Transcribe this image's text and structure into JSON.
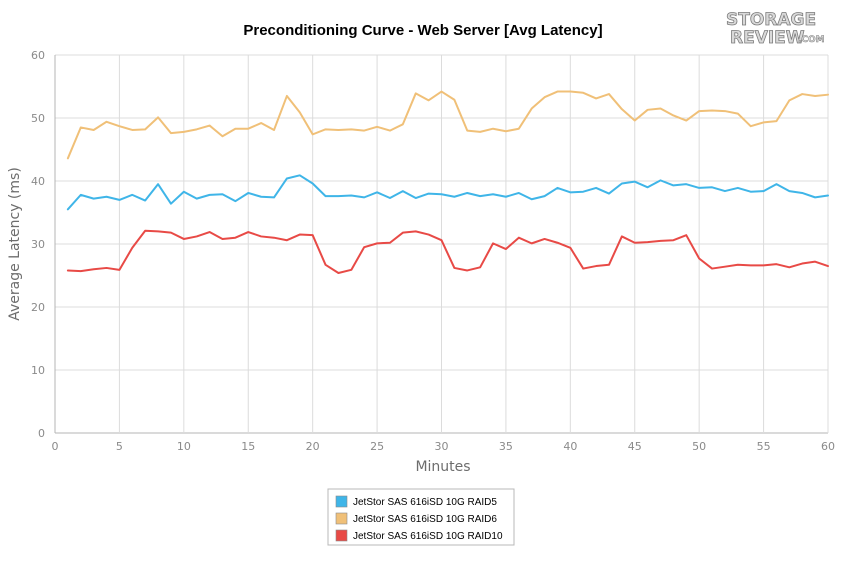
{
  "chart_data": {
    "type": "line",
    "title": "Preconditioning Curve - Web Server [Avg Latency]",
    "xlabel": "Minutes",
    "ylabel": "Average Latency (ms)",
    "xlim": [
      0,
      60
    ],
    "ylim": [
      0,
      60
    ],
    "xticks": [
      0,
      5,
      10,
      15,
      20,
      25,
      30,
      35,
      40,
      45,
      50,
      55,
      60
    ],
    "yticks": [
      0,
      10,
      20,
      30,
      40,
      50,
      60
    ],
    "grid": true,
    "legend_position": "bottom-center",
    "x": [
      1,
      2,
      3,
      4,
      5,
      6,
      7,
      8,
      9,
      10,
      11,
      12,
      13,
      14,
      15,
      16,
      17,
      18,
      19,
      20,
      21,
      22,
      23,
      24,
      25,
      26,
      27,
      28,
      29,
      30,
      31,
      32,
      33,
      34,
      35,
      36,
      37,
      38,
      39,
      40,
      41,
      42,
      43,
      44,
      45,
      46,
      47,
      48,
      49,
      50,
      51,
      52,
      53,
      54,
      55,
      56,
      57,
      58,
      59,
      60
    ],
    "series": [
      {
        "name": "JetStor SAS 616iSD 10G RAID5",
        "color": "#3fb5e8",
        "values": [
          35.5,
          37.8,
          37.2,
          37.5,
          37.0,
          37.8,
          36.9,
          39.5,
          36.4,
          38.3,
          37.2,
          37.8,
          37.9,
          36.8,
          38.1,
          37.5,
          37.4,
          40.4,
          40.9,
          39.6,
          37.6,
          37.6,
          37.7,
          37.4,
          38.2,
          37.3,
          38.4,
          37.3,
          38.0,
          37.9,
          37.5,
          38.1,
          37.6,
          37.9,
          37.5,
          38.1,
          37.1,
          37.6,
          38.9,
          38.2,
          38.3,
          38.9,
          38.0,
          39.6,
          39.9,
          39.0,
          40.1,
          39.3,
          39.5,
          38.9,
          39.0,
          38.4,
          38.9,
          38.3,
          38.4,
          39.5,
          38.4,
          38.1,
          37.4,
          37.7
        ]
      },
      {
        "name": "JetStor SAS 616iSD 10G RAID6",
        "color": "#f0c078",
        "values": [
          43.6,
          48.5,
          48.1,
          49.4,
          48.7,
          48.1,
          48.2,
          50.1,
          47.6,
          47.8,
          48.2,
          48.8,
          47.1,
          48.3,
          48.3,
          49.2,
          48.1,
          53.5,
          50.9,
          47.4,
          48.2,
          48.1,
          48.2,
          48.0,
          48.6,
          48.0,
          49.0,
          53.9,
          52.8,
          54.2,
          52.9,
          48.0,
          47.8,
          48.3,
          47.9,
          48.3,
          51.5,
          53.3,
          54.2,
          54.2,
          54.0,
          53.1,
          53.8,
          51.4,
          49.6,
          51.3,
          51.5,
          50.4,
          49.6,
          51.1,
          51.2,
          51.1,
          50.7,
          48.7,
          49.3,
          49.5,
          52.8,
          53.8,
          53.5,
          53.7
        ]
      },
      {
        "name": "JetStor SAS 616iSD 10G RAID10",
        "color": "#e84a46",
        "values": [
          25.8,
          25.7,
          26.0,
          26.2,
          25.9,
          29.4,
          32.1,
          32.0,
          31.8,
          30.8,
          31.2,
          31.9,
          30.8,
          31.0,
          31.9,
          31.2,
          31.0,
          30.6,
          31.5,
          31.4,
          26.7,
          25.4,
          25.9,
          29.5,
          30.1,
          30.2,
          31.8,
          32.0,
          31.5,
          30.6,
          26.2,
          25.8,
          26.3,
          30.1,
          29.2,
          31.0,
          30.1,
          30.8,
          30.2,
          29.4,
          26.1,
          26.5,
          26.7,
          31.2,
          30.2,
          30.3,
          30.5,
          30.6,
          31.4,
          27.7,
          26.1,
          26.4,
          26.7,
          26.6,
          26.6,
          26.8,
          26.3,
          26.9,
          27.2,
          26.5
        ]
      }
    ]
  },
  "watermark": {
    "logo_top": "STORAGE",
    "logo_bottom": "REVIEW",
    "logo_suffix": ".COM"
  }
}
